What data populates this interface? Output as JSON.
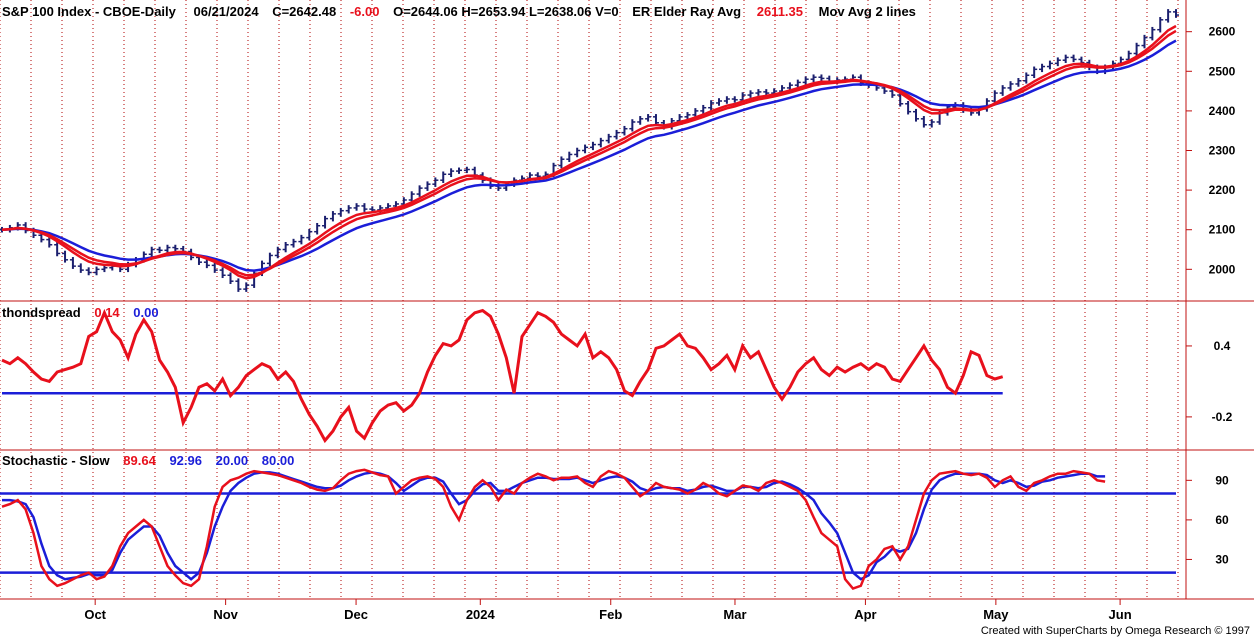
{
  "colors": {
    "red": "#e8101c",
    "blue": "#1b1ed8",
    "navy": "#1b1f6e",
    "grid": "#b00000",
    "frame": "#c01010"
  },
  "header": {
    "title": "S&P 100 Index - CBOE-Daily",
    "date": "06/21/2024",
    "close": "C=2642.48",
    "change": "-6.00",
    "ohlv": "O=2644.06  H=2653.94  L=2638.06  V=0",
    "er_label": "ER Elder Ray Avg",
    "er_value": "2611.35",
    "mov_label": "Mov Avg 2 lines"
  },
  "panel2": {
    "name": "thondspread",
    "v1": "0.14",
    "v2": "0.00"
  },
  "panel3": {
    "name": "Stochastic - Slow",
    "v1": "89.64",
    "v2": "92.96",
    "v3": "20.00",
    "v4": "80.00"
  },
  "months": [
    "Oct",
    "Nov",
    "Dec",
    "2024",
    "Feb",
    "Mar",
    "Apr",
    "May",
    "Jun"
  ],
  "credit": "Created with SuperCharts by Omega Research © 1997",
  "chart_data": [
    {
      "type": "line",
      "name": "price",
      "ylim": [
        1920,
        2680
      ],
      "yticks": [
        2000,
        2100,
        2200,
        2300,
        2400,
        2500,
        2600
      ],
      "close": [
        2100,
        2105,
        2112,
        2098,
        2086,
        2075,
        2062,
        2040,
        2024,
        2008,
        1998,
        1992,
        2000,
        2004,
        2008,
        2000,
        2012,
        2024,
        2038,
        2050,
        2048,
        2055,
        2052,
        2045,
        2030,
        2018,
        2010,
        1998,
        1985,
        1970,
        1950,
        1960,
        1990,
        2015,
        2035,
        2050,
        2062,
        2070,
        2080,
        2095,
        2110,
        2128,
        2140,
        2148,
        2155,
        2160,
        2152,
        2150,
        2155,
        2160,
        2165,
        2175,
        2190,
        2205,
        2215,
        2225,
        2240,
        2248,
        2250,
        2252,
        2238,
        2225,
        2210,
        2205,
        2215,
        2225,
        2230,
        2238,
        2235,
        2240,
        2262,
        2278,
        2290,
        2300,
        2308,
        2315,
        2325,
        2335,
        2345,
        2355,
        2372,
        2380,
        2385,
        2370,
        2360,
        2375,
        2385,
        2390,
        2400,
        2408,
        2420,
        2425,
        2430,
        2428,
        2440,
        2445,
        2448,
        2445,
        2450,
        2458,
        2465,
        2472,
        2480,
        2485,
        2482,
        2475,
        2478,
        2480,
        2485,
        2470,
        2465,
        2458,
        2450,
        2440,
        2418,
        2398,
        2380,
        2365,
        2372,
        2395,
        2410,
        2415,
        2402,
        2395,
        2405,
        2425,
        2445,
        2458,
        2468,
        2476,
        2490,
        2505,
        2512,
        2520,
        2528,
        2535,
        2530,
        2522,
        2510,
        2500,
        2510,
        2520,
        2530,
        2545,
        2565,
        2585,
        2605,
        2630,
        2650,
        2642
      ]
    },
    {
      "type": "line",
      "name": "thondspread",
      "ylim": [
        -0.48,
        0.78
      ],
      "yticks": [
        -0.2,
        0.4
      ],
      "series": [
        {
          "values": [
            0.28,
            0.25,
            0.3,
            0.25,
            0.18,
            0.12,
            0.1,
            0.18,
            0.2,
            0.22,
            0.25,
            0.48,
            0.52,
            0.68,
            0.52,
            0.45,
            0.3,
            0.5,
            0.62,
            0.52,
            0.28,
            0.18,
            0.05,
            -0.25,
            -0.12,
            0.05,
            0.08,
            0.02,
            0.12,
            -0.02,
            0.05,
            0.15,
            0.2,
            0.25,
            0.22,
            0.12,
            0.18,
            0.1,
            -0.05,
            -0.18,
            -0.28,
            -0.4,
            -0.32,
            -0.2,
            -0.12,
            -0.32,
            -0.38,
            -0.25,
            -0.15,
            -0.1,
            -0.08,
            -0.15,
            -0.1,
            0.0,
            0.18,
            0.32,
            0.42,
            0.4,
            0.45,
            0.62,
            0.68,
            0.7,
            0.65,
            0.5,
            0.3,
            0.0,
            0.48,
            0.58,
            0.68,
            0.65,
            0.6,
            0.5,
            0.45,
            0.4,
            0.5,
            0.3,
            0.35,
            0.3,
            0.2,
            0.02,
            -0.02,
            0.1,
            0.2,
            0.38,
            0.4,
            0.45,
            0.5,
            0.4,
            0.38,
            0.3,
            0.2,
            0.25,
            0.32,
            0.2,
            0.4,
            0.3,
            0.35,
            0.2,
            0.05,
            -0.05,
            0.05,
            0.18,
            0.25,
            0.3,
            0.2,
            0.15,
            0.22,
            0.18,
            0.22,
            0.25,
            0.2,
            0.25,
            0.22,
            0.12,
            0.1,
            0.2,
            0.3,
            0.4,
            0.28,
            0.2,
            0.05,
            0.0,
            0.15,
            0.35,
            0.32,
            0.15,
            0.12,
            0.14
          ]
        },
        {
          "values": [
            0.0,
            0.0,
            0.0,
            0.0,
            0.0,
            0.0,
            0.0,
            0.0,
            0.0,
            0.0,
            0.0,
            0.0,
            0.0,
            0.0,
            0.0,
            0.0,
            0.0,
            0.0,
            0.0,
            0.0,
            0.0,
            0.0,
            0.0,
            0.0,
            0.0,
            0.0,
            0.0,
            0.0,
            0.0,
            0.0,
            0.0,
            0.0,
            0.0,
            0.0,
            0.0,
            0.0,
            0.0,
            0.0,
            0.0,
            0.0,
            0.0,
            0.0,
            0.0,
            0.0,
            0.0,
            0.0,
            0.0,
            0.0,
            0.0,
            0.0,
            0.0,
            0.0,
            0.0,
            0.0,
            0.0,
            0.0,
            0.0,
            0.0,
            0.0,
            0.0,
            0.0,
            0.0,
            0.0,
            0.0,
            0.0,
            0.0,
            0.0,
            0.0,
            0.0,
            0.0,
            0.0,
            0.0,
            0.0,
            0.0,
            0.0,
            0.0,
            0.0,
            0.0,
            0.0,
            0.0,
            0.0,
            0.0,
            0.0,
            0.0,
            0.0,
            0.0,
            0.0,
            0.0,
            0.0,
            0.0,
            0.0,
            0.0,
            0.0,
            0.0,
            0.0,
            0.0,
            0.0,
            0.0,
            0.0,
            0.0,
            0.0,
            0.0,
            0.0,
            0.0,
            0.0,
            0.0,
            0.0,
            0.0,
            0.0,
            0.0,
            0.0,
            0.0,
            0.0,
            0.0,
            0.0,
            0.0,
            0.0,
            0.0,
            0.0,
            0.0,
            0.0,
            0.0,
            0.0,
            0.0,
            0.0,
            0.0,
            0.0,
            0.0
          ]
        }
      ]
    },
    {
      "type": "line",
      "name": "stochastic-slow",
      "ylim": [
        0,
        113
      ],
      "yticks": [
        30,
        60,
        90
      ],
      "levels": [
        20,
        80
      ],
      "series": [
        {
          "values": [
            70,
            72,
            75,
            68,
            50,
            25,
            15,
            10,
            12,
            15,
            18,
            20,
            15,
            17,
            25,
            40,
            50,
            55,
            60,
            55,
            40,
            25,
            18,
            12,
            10,
            15,
            40,
            70,
            85,
            90,
            92,
            95,
            97,
            96,
            95,
            94,
            92,
            90,
            88,
            85,
            83,
            82,
            84,
            90,
            95,
            97,
            98,
            96,
            94,
            93,
            80,
            85,
            90,
            92,
            93,
            91,
            85,
            70,
            60,
            75,
            85,
            90,
            85,
            75,
            83,
            80,
            88,
            92,
            95,
            93,
            90,
            92,
            92,
            93,
            88,
            85,
            93,
            97,
            95,
            92,
            85,
            78,
            82,
            88,
            85,
            84,
            83,
            80,
            83,
            88,
            85,
            80,
            78,
            82,
            86,
            85,
            82,
            88,
            90,
            88,
            85,
            82,
            75,
            62,
            50,
            45,
            40,
            15,
            8,
            10,
            25,
            30,
            38,
            40,
            30,
            40,
            60,
            80,
            90,
            95,
            96,
            97,
            95,
            94,
            95,
            92,
            85,
            90,
            93,
            85,
            82,
            88,
            90,
            93,
            95,
            95,
            97,
            96,
            95,
            90,
            89
          ]
        },
        {
          "values": [
            75,
            75,
            74,
            72,
            62,
            42,
            25,
            18,
            15,
            16,
            17,
            19,
            18,
            18,
            22,
            35,
            45,
            50,
            55,
            55,
            48,
            35,
            25,
            20,
            15,
            20,
            35,
            55,
            70,
            82,
            88,
            92,
            95,
            96,
            96,
            95,
            93,
            91,
            89,
            87,
            85,
            84,
            84,
            86,
            90,
            93,
            95,
            96,
            95,
            93,
            88,
            82,
            86,
            90,
            92,
            92,
            89,
            80,
            72,
            75,
            82,
            87,
            88,
            82,
            82,
            85,
            88,
            90,
            92,
            92,
            91,
            91,
            91,
            92,
            90,
            88,
            90,
            92,
            93,
            92,
            89,
            84,
            82,
            84,
            85,
            84,
            84,
            82,
            83,
            85,
            86,
            84,
            82,
            82,
            85,
            85,
            84,
            85,
            88,
            89,
            87,
            84,
            80,
            75,
            65,
            58,
            50,
            35,
            20,
            15,
            18,
            28,
            32,
            38,
            36,
            38,
            50,
            68,
            83,
            90,
            93,
            95,
            95,
            95,
            95,
            94,
            90,
            88,
            90,
            88,
            85,
            86,
            89,
            90,
            92,
            93,
            94,
            95,
            95,
            93,
            93
          ]
        }
      ]
    }
  ]
}
